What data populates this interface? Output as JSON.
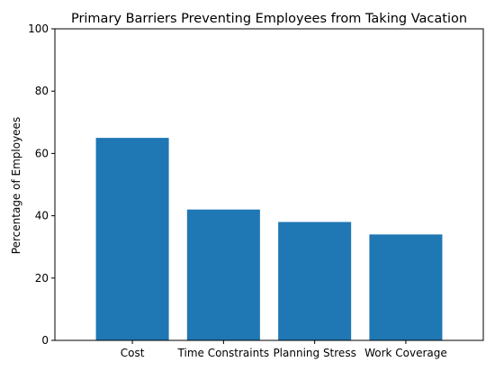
{
  "chart_data": {
    "type": "bar",
    "title": "Primary Barriers Preventing Employees from Taking Vacation",
    "xlabel": "",
    "ylabel": "Percentage of Employees",
    "categories": [
      "Cost",
      "Time Constraints",
      "Planning Stress",
      "Work Coverage"
    ],
    "values": [
      65,
      42,
      38,
      34
    ],
    "ylim": [
      0,
      100
    ],
    "yticks": [
      0,
      20,
      40,
      60,
      80,
      100
    ],
    "bar_color": "#1f77b4",
    "grid": false,
    "legend": "none"
  }
}
